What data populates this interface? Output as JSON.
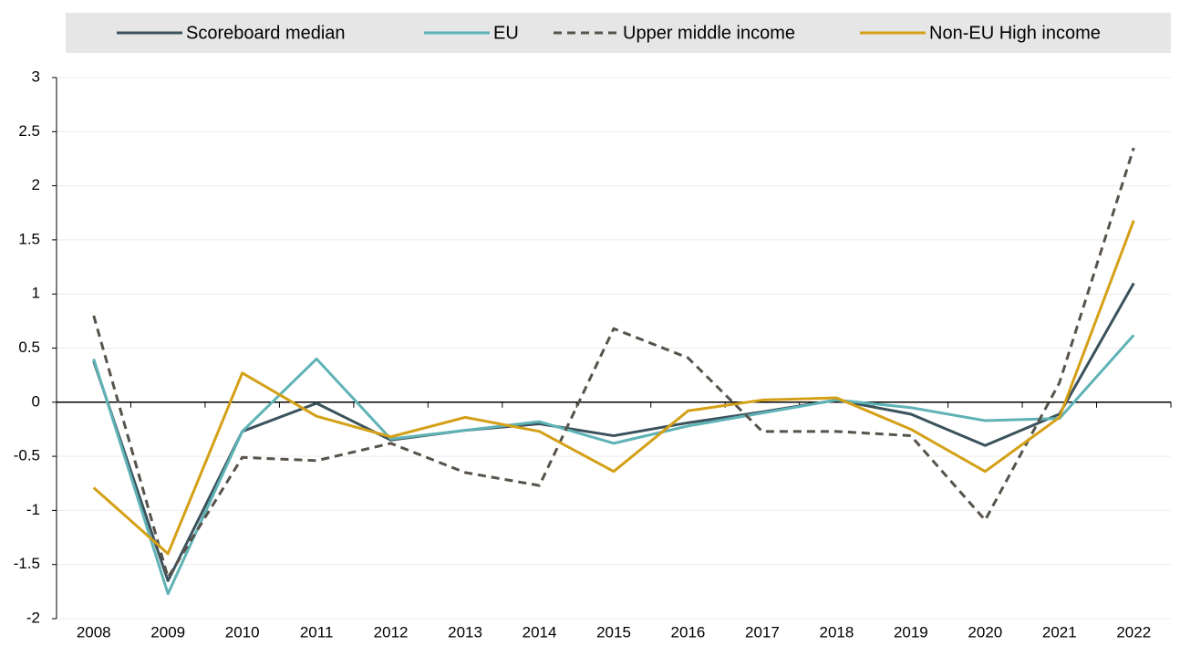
{
  "chart_data": {
    "type": "line",
    "categories": [
      "2008",
      "2009",
      "2010",
      "2011",
      "2012",
      "2013",
      "2014",
      "2015",
      "2016",
      "2017",
      "2018",
      "2019",
      "2020",
      "2021",
      "2022"
    ],
    "series": [
      {
        "name": "Scoreboard median",
        "color": "#3b525c",
        "values": [
          0.38,
          -1.65,
          -0.27,
          -0.01,
          -0.35,
          -0.26,
          -0.2,
          -0.31,
          -0.19,
          -0.09,
          0.02,
          -0.11,
          -0.4,
          -0.11,
          1.1
        ]
      },
      {
        "name": "EU",
        "color": "#5fb3b6",
        "values": [
          0.4,
          -1.77,
          -0.27,
          0.4,
          -0.34,
          -0.26,
          -0.18,
          -0.38,
          -0.22,
          -0.1,
          0.02,
          -0.05,
          -0.17,
          -0.15,
          0.62
        ]
      },
      {
        "name": "Upper middle income",
        "color": "#57534b",
        "dash": "dashed",
        "values": [
          0.8,
          -1.62,
          -0.51,
          -0.54,
          -0.38,
          -0.65,
          -0.77,
          0.68,
          0.41,
          -0.27,
          -0.27,
          -0.31,
          -1.09,
          0.18,
          2.35
        ]
      },
      {
        "name": "Non-EU High income",
        "color": "#d4a017",
        "values": [
          -0.79,
          -1.4,
          0.27,
          -0.13,
          -0.32,
          -0.14,
          -0.27,
          -0.64,
          -0.08,
          0.02,
          0.04,
          -0.25,
          -0.64,
          -0.14,
          1.68
        ]
      }
    ],
    "ylim": [
      -2,
      3
    ],
    "yticks": [
      -2,
      -1.5,
      -1,
      -0.5,
      0,
      0.5,
      1,
      1.5,
      2,
      2.5,
      3
    ],
    "grid": true,
    "legend": "top"
  }
}
